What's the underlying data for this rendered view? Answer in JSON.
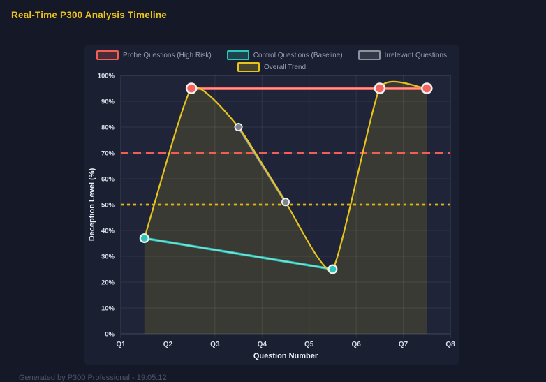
{
  "header": {
    "title": "Real-Time P300 Analysis Timeline",
    "title_color": "#eac21b"
  },
  "footer": {
    "text": "Generated by P300 Professional - 19:05:12"
  },
  "colors": {
    "page_bg": "#141827",
    "panel_bg": "#1a1f31",
    "plot_bg": "#1f2438",
    "grid": "rgba(255,255,255,0.08)",
    "grid_border": "rgba(255,255,255,0.17)",
    "tick_text": "#dce0eb",
    "axis_title_text": "#eef1f8",
    "legend_text": "#9aa0b2",
    "marker_ring": "#f0f0f2"
  },
  "chart_data": {
    "type": "line",
    "title": "Real-Time P300 Analysis Timeline",
    "xlabel": "Question Number",
    "ylabel": "Deception Level (%)",
    "x_range": [
      1,
      8
    ],
    "x_tick_labels": [
      "Q1",
      "Q2",
      "Q3",
      "Q4",
      "Q5",
      "Q6",
      "Q7",
      "Q8"
    ],
    "ylim": [
      0,
      100
    ],
    "y_tick_labels": [
      "0%",
      "10%",
      "20%",
      "30%",
      "40%",
      "50%",
      "60%",
      "70%",
      "80%",
      "90%",
      "100%"
    ],
    "grid": true,
    "legend_position": "top",
    "legend_rows": [
      [
        0,
        1,
        2
      ],
      [
        3
      ]
    ],
    "series": [
      {
        "name": "Probe Questions (High Risk)",
        "color": "#f25d55",
        "core_color": "#ff9d97",
        "points": [
          [
            2.5,
            95
          ],
          [
            6.5,
            95
          ],
          [
            7.5,
            95
          ]
        ],
        "line_width": 5,
        "marker_fill": "#f5635b",
        "marker_outer_r": 8.3,
        "marker_inner_r": 5.8,
        "interpolation": "linear"
      },
      {
        "name": "Control Questions (Baseline)",
        "color": "#2cc5b8",
        "core_color": "#8fe6dd",
        "points": [
          [
            1.5,
            37
          ],
          [
            5.5,
            25
          ]
        ],
        "line_width": 3.5,
        "marker_fill": "#2cc5b8",
        "marker_outer_r": 7,
        "marker_inner_r": 4.8,
        "interpolation": "linear"
      },
      {
        "name": "Irrelevant Questions",
        "color": "#8d939c",
        "core_color": "#c9ccd3",
        "points": [
          [
            3.5,
            80
          ],
          [
            4.5,
            51
          ]
        ],
        "line_width": 3.5,
        "marker_fill": "#7d828b",
        "marker_outer_r": 6,
        "marker_inner_r": 4.2,
        "interpolation": "linear"
      },
      {
        "name": "Overall Trend",
        "color": "#e6c41d",
        "points": [
          [
            1.5,
            37
          ],
          [
            2.5,
            95
          ],
          [
            3.5,
            80
          ],
          [
            4.5,
            51
          ],
          [
            5.5,
            25
          ],
          [
            6.5,
            95
          ],
          [
            7.5,
            95
          ]
        ],
        "line_width": 2.2,
        "interpolation": "spline",
        "fill": true,
        "fill_color": "rgba(230,196,29,0.14)",
        "markers": false
      }
    ],
    "thresholds": [
      {
        "y": 70,
        "color": "#f25d55",
        "style": "dashed"
      },
      {
        "y": 50,
        "color": "#e3b70e",
        "style": "dotted"
      }
    ]
  }
}
